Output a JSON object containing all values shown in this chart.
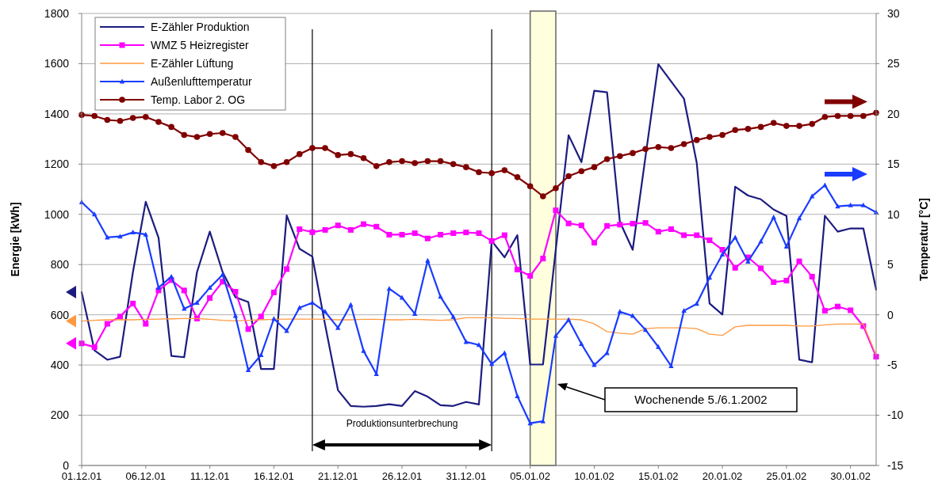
{
  "chart_data": {
    "type": "line",
    "ylabel": "Energie [kWh]",
    "y2label": "Temperatur [°C]",
    "x": [
      "2001-12-01",
      "2001-12-02",
      "2001-12-03",
      "2001-12-04",
      "2001-12-05",
      "2001-12-06",
      "2001-12-07",
      "2001-12-08",
      "2001-12-09",
      "2001-12-10",
      "2001-12-11",
      "2001-12-12",
      "2001-12-13",
      "2001-12-14",
      "2001-12-15",
      "2001-12-16",
      "2001-12-17",
      "2001-12-18",
      "2001-12-19",
      "2001-12-20",
      "2001-12-21",
      "2001-12-22",
      "2001-12-23",
      "2001-12-24",
      "2001-12-25",
      "2001-12-26",
      "2001-12-27",
      "2001-12-28",
      "2001-12-29",
      "2001-12-30",
      "2001-12-31",
      "2002-01-01",
      "2002-01-02",
      "2002-01-03",
      "2002-01-04",
      "2002-01-05",
      "2002-01-06",
      "2002-01-07",
      "2002-01-08",
      "2002-01-09",
      "2002-01-10",
      "2002-01-11",
      "2002-01-12",
      "2002-01-13",
      "2002-01-14",
      "2002-01-15",
      "2002-01-16",
      "2002-01-17",
      "2002-01-18",
      "2002-01-19",
      "2002-01-20",
      "2002-01-21",
      "2002-01-22",
      "2002-01-23",
      "2002-01-24",
      "2002-01-25",
      "2002-01-26",
      "2002-01-27",
      "2002-01-28",
      "2002-01-29",
      "2002-01-30",
      "2002-01-31",
      "2002-02-01"
    ],
    "series": [
      {
        "name": "E-Zähler Produktion",
        "color": "#1c1c80",
        "marker": "none",
        "values": [
          690,
          458,
          421,
          433,
          770,
          1050,
          907,
          436,
          431,
          770,
          931,
          770,
          670,
          651,
          384,
          384,
          996,
          863,
          832,
          560,
          300,
          237,
          234,
          237,
          244,
          237,
          296,
          274,
          240,
          237,
          253,
          243,
          894,
          829,
          917,
          402,
          402,
          860,
          1315,
          1208,
          1492,
          1486,
          970,
          859,
          1230,
          1598,
          1529,
          1461,
          1205,
          645,
          601,
          1110,
          1075,
          1060,
          1019,
          994,
          421,
          411,
          994,
          931,
          944,
          944,
          700
        ]
      },
      {
        "name": "WMZ 5 Heizregister",
        "color": "#ff00ff",
        "marker": "square",
        "values": [
          486,
          471,
          564,
          593,
          645,
          564,
          697,
          738,
          697,
          585,
          667,
          732,
          692,
          543,
          593,
          689,
          782,
          941,
          929,
          938,
          956,
          938,
          961,
          951,
          919,
          919,
          925,
          904,
          919,
          925,
          928,
          925,
          894,
          917,
          780,
          755,
          824,
          1016,
          964,
          956,
          887,
          954,
          959,
          963,
          966,
          931,
          941,
          917,
          917,
          897,
          859,
          787,
          829,
          785,
          730,
          736,
          813,
          752,
          616,
          633,
          618,
          555,
          433
        ]
      },
      {
        "name": "E-Zähler Lüftung",
        "color": "#ff9940",
        "marker": "none",
        "values": [
          575,
          578,
          580,
          580,
          580,
          582,
          583,
          584,
          585,
          585,
          582,
          578,
          576,
          578,
          580,
          582,
          583,
          583,
          583,
          582,
          580,
          580,
          582,
          582,
          580,
          580,
          582,
          580,
          578,
          580,
          588,
          588,
          588,
          586,
          585,
          583,
          583,
          583,
          583,
          580,
          564,
          533,
          527,
          523,
          545,
          548,
          548,
          548,
          545,
          523,
          518,
          552,
          558,
          558,
          558,
          558,
          555,
          555,
          560,
          563,
          563,
          563,
          440
        ]
      },
      {
        "name": "Außenlufttemperatur",
        "color": "#1a3cff",
        "marker": "triangle",
        "axis": "y2",
        "values": [
          11.2,
          10.0,
          7.7,
          7.8,
          8.2,
          8.0,
          2.7,
          3.8,
          0.6,
          1.2,
          2.7,
          4.0,
          -0.1,
          -5.5,
          -4.0,
          -0.4,
          -1.6,
          0.7,
          1.2,
          0.3,
          -1.3,
          1.0,
          -3.6,
          -5.9,
          2.6,
          1.7,
          0.1,
          5.4,
          1.8,
          -0.2,
          -2.7,
          -3.0,
          -4.9,
          -3.8,
          -8.1,
          -10.8,
          -10.6,
          -2.1,
          -0.5,
          -2.9,
          -5.0,
          -3.8,
          0.3,
          -0.1,
          -1.5,
          -3.2,
          -5.1,
          0.4,
          1.1,
          3.7,
          6.0,
          7.7,
          5.3,
          7.3,
          9.7,
          6.8,
          9.6,
          11.8,
          12.9,
          10.8,
          10.9,
          10.9,
          10.2
        ]
      },
      {
        "name": "Temp. Labor 2. OG",
        "color": "#800000",
        "marker": "circle",
        "axis": "y2",
        "values": [
          19.9,
          19.8,
          19.4,
          19.3,
          19.6,
          19.7,
          19.2,
          18.7,
          17.9,
          17.7,
          18.0,
          18.1,
          17.7,
          16.4,
          15.2,
          14.8,
          15.2,
          16.0,
          16.6,
          16.6,
          15.9,
          16.0,
          15.6,
          14.8,
          15.2,
          15.3,
          15.1,
          15.3,
          15.3,
          15.0,
          14.7,
          14.2,
          14.1,
          14.4,
          13.7,
          12.8,
          11.8,
          12.6,
          13.8,
          14.3,
          14.7,
          15.5,
          15.8,
          16.1,
          16.5,
          16.7,
          16.6,
          17.0,
          17.4,
          17.7,
          17.9,
          18.4,
          18.5,
          18.7,
          19.1,
          18.8,
          18.8,
          19.0,
          19.7,
          19.8,
          19.8,
          19.8,
          20.1
        ]
      }
    ],
    "xlim": [
      "2001-12-01",
      "2002-02-01"
    ],
    "xticks": [
      {
        "value": "2001-12-01",
        "label": "01.12.01"
      },
      {
        "value": "2001-12-06",
        "label": "06.12.01"
      },
      {
        "value": "2001-12-11",
        "label": "11.12.01"
      },
      {
        "value": "2001-12-16",
        "label": "16.12.01"
      },
      {
        "value": "2001-12-21",
        "label": "21.12.01"
      },
      {
        "value": "2001-12-26",
        "label": "26.12.01"
      },
      {
        "value": "2001-12-31",
        "label": "31.12.01"
      },
      {
        "value": "2002-01-05",
        "label": "05.01.02"
      },
      {
        "value": "2002-01-10",
        "label": "10.01.02"
      },
      {
        "value": "2002-01-15",
        "label": "15.01.02"
      },
      {
        "value": "2002-01-20",
        "label": "20.01.02"
      },
      {
        "value": "2002-01-25",
        "label": "25.01.02"
      },
      {
        "value": "2002-01-30",
        "label": "30.01.02"
      }
    ],
    "ylim": [
      0,
      1800
    ],
    "yticks": [
      0,
      200,
      400,
      600,
      800,
      1000,
      1200,
      1400,
      1600,
      1800
    ],
    "y2lim": [
      -15,
      30
    ],
    "y2ticks": [
      -15,
      -10,
      -5,
      0,
      5,
      10,
      15,
      20,
      25,
      30
    ],
    "grid": "y",
    "legend": "top left",
    "line_style": "solid",
    "ref_lines": [
      {
        "axis": "x",
        "value": "2001-12-19",
        "color": "#000000"
      },
      {
        "axis": "x",
        "value": "2002-01-02",
        "color": "#000000"
      }
    ],
    "bands": [
      {
        "axis": "x",
        "from": "2002-01-05",
        "to": "2002-01-07",
        "color": "#ffffdd"
      }
    ],
    "annotations": [
      "Produktionsunterbrechung",
      "Wochenende 5./6.1.2002"
    ]
  }
}
